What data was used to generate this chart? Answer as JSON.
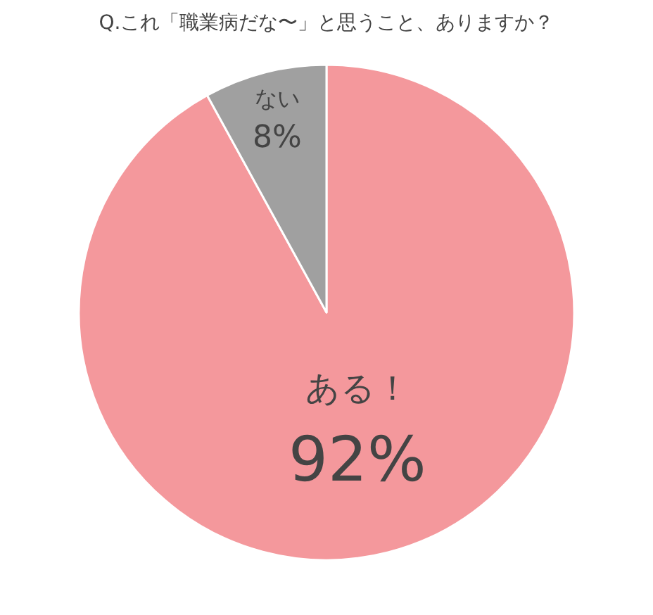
{
  "chart_data": {
    "type": "pie",
    "title": "Q.これ「職業病だな〜」と思うこと、ありますか？",
    "categories": [
      "ある！",
      "ない"
    ],
    "values": [
      92,
      8
    ],
    "value_labels": [
      "92%",
      "8%"
    ],
    "colors": [
      "#f4989c",
      "#a0a0a0"
    ],
    "legend": false
  }
}
